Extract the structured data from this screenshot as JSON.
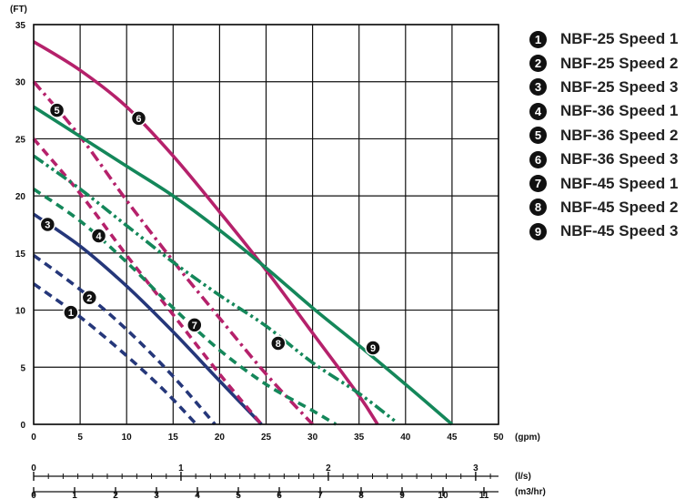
{
  "chart_data": {
    "type": "line",
    "y_unit": "(FT)",
    "x_unit": "(gpm)",
    "xlim": [
      0,
      50
    ],
    "ylim": [
      0,
      35
    ],
    "x_ticks": [
      "0",
      "5",
      "10",
      "15",
      "20",
      "25",
      "30",
      "35",
      "40",
      "45",
      "50"
    ],
    "y_ticks": [
      "0",
      "5",
      "10",
      "15",
      "20",
      "25",
      "30",
      "35"
    ],
    "grid": true,
    "secondary_axes": [
      {
        "unit": "(l/s)",
        "max": 3.155,
        "ticks": [
          "0",
          "1",
          "2",
          "3"
        ],
        "minor_step": 0.1
      },
      {
        "unit": "(m3/hr)",
        "max": 11.356,
        "ticks": [
          "0",
          "1",
          "2",
          "3",
          "4",
          "5",
          "6",
          "7",
          "8",
          "9",
          "10",
          "11"
        ]
      }
    ],
    "legend_position": "right",
    "series": [
      {
        "id": "1",
        "name": "NBF-25 Speed 1",
        "color": "#25377a",
        "dash": "dash",
        "label_at": [
          4,
          9.8
        ],
        "points": [
          [
            0,
            12.3
          ],
          [
            5,
            9.4
          ],
          [
            10,
            6.0
          ],
          [
            14,
            3.0
          ],
          [
            17.5,
            0
          ]
        ]
      },
      {
        "id": "2",
        "name": "NBF-25 Speed 2",
        "color": "#25377a",
        "dash": "dash",
        "label_at": [
          6,
          11.1
        ],
        "points": [
          [
            0,
            14.8
          ],
          [
            5,
            11.8
          ],
          [
            10,
            8.3
          ],
          [
            15,
            4.2
          ],
          [
            19.5,
            0
          ]
        ]
      },
      {
        "id": "3",
        "name": "NBF-25 Speed 3",
        "color": "#25377a",
        "dash": "solid",
        "label_at": [
          1.5,
          17.5
        ],
        "points": [
          [
            0,
            18.4
          ],
          [
            5,
            15.6
          ],
          [
            10,
            12.1
          ],
          [
            15,
            8.1
          ],
          [
            20,
            3.8
          ],
          [
            24.5,
            0
          ]
        ]
      },
      {
        "id": "4",
        "name": "NBF-36 Speed 1",
        "color": "#b5216b",
        "dash": "dash",
        "label_at": [
          7,
          16.5
        ],
        "points": [
          [
            0,
            25.0
          ],
          [
            5,
            20.2
          ],
          [
            10,
            14.8
          ],
          [
            15,
            9.6
          ],
          [
            20,
            4.4
          ],
          [
            24.5,
            0
          ]
        ]
      },
      {
        "id": "5",
        "name": "NBF-36 Speed 2",
        "color": "#b5216b",
        "dash": "dashdot",
        "label_at": [
          2.5,
          27.5
        ],
        "points": [
          [
            0,
            30.0
          ],
          [
            5,
            25.2
          ],
          [
            10,
            19.6
          ],
          [
            15,
            14.3
          ],
          [
            20,
            9.3
          ],
          [
            25,
            4.4
          ],
          [
            30,
            0
          ]
        ]
      },
      {
        "id": "6",
        "name": "NBF-36 Speed 3",
        "color": "#b5216b",
        "dash": "solid",
        "label_at": [
          11.3,
          26.8
        ],
        "points": [
          [
            0,
            33.5
          ],
          [
            5,
            31.0
          ],
          [
            10,
            27.8
          ],
          [
            15,
            23.5
          ],
          [
            20,
            18.6
          ],
          [
            25,
            13.5
          ],
          [
            30,
            8.0
          ],
          [
            35,
            2.5
          ],
          [
            37,
            0
          ]
        ]
      },
      {
        "id": "7",
        "name": "NBF-45 Speed 1",
        "color": "#14875a",
        "dash": "dash",
        "label_at": [
          17.3,
          8.7
        ],
        "points": [
          [
            0,
            20.6
          ],
          [
            5,
            17.8
          ],
          [
            10,
            14.2
          ],
          [
            15,
            10.2
          ],
          [
            20,
            6.5
          ],
          [
            25,
            3.5
          ],
          [
            30,
            1.2
          ],
          [
            32.5,
            0
          ]
        ]
      },
      {
        "id": "8",
        "name": "NBF-45 Speed 2",
        "color": "#14875a",
        "dash": "dashdotdot",
        "label_at": [
          26.3,
          7.1
        ],
        "points": [
          [
            0,
            23.5
          ],
          [
            5,
            20.6
          ],
          [
            10,
            17.4
          ],
          [
            15,
            14.2
          ],
          [
            20,
            11.3
          ],
          [
            25,
            8.6
          ],
          [
            30,
            5.4
          ],
          [
            35,
            2.7
          ],
          [
            39,
            0.2
          ]
        ]
      },
      {
        "id": "9",
        "name": "NBF-45 Speed 3",
        "color": "#14875a",
        "dash": "solid",
        "label_at": [
          36.5,
          6.7
        ],
        "points": [
          [
            0,
            27.8
          ],
          [
            5,
            25.2
          ],
          [
            10,
            22.6
          ],
          [
            15,
            20.0
          ],
          [
            20,
            17.0
          ],
          [
            25,
            13.7
          ],
          [
            30,
            10.2
          ],
          [
            35,
            6.9
          ],
          [
            40,
            3.5
          ],
          [
            45,
            0
          ]
        ]
      }
    ]
  }
}
